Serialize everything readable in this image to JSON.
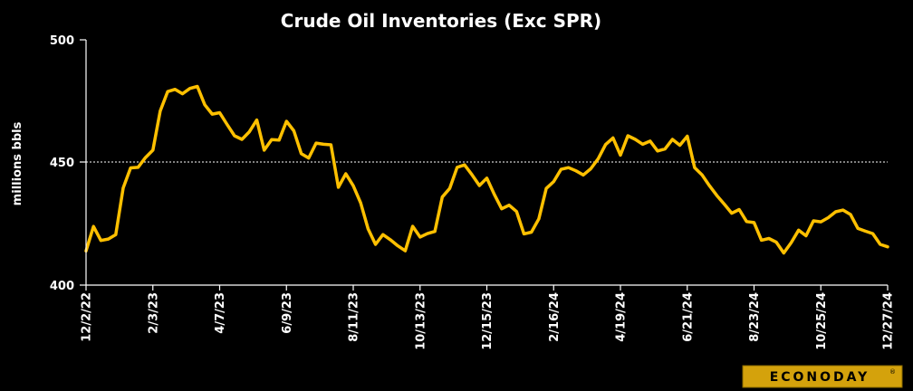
{
  "chart_data": {
    "type": "line",
    "title": "Crude Oil Inventories (Exc SPR)",
    "ylabel": "millions bbls",
    "ylim": [
      400,
      500
    ],
    "yticks": [
      "400",
      "450",
      "500"
    ],
    "gridline": 450,
    "x_tick_labels": [
      "12/2/22",
      "2/3/23",
      "4/7/23",
      "6/9/23",
      "8/11/23",
      "10/13/23",
      "12/15/23",
      "2/16/24",
      "4/19/24",
      "6/21/24",
      "8/23/24",
      "10/25/24",
      "12/27/24"
    ],
    "series": [
      {
        "color": "#ffc000",
        "values": [
          413.9,
          423.9,
          418.2,
          418.8,
          420.6,
          439.6,
          447.8,
          448.0,
          452.0,
          455.0,
          471.0,
          478.9,
          479.8,
          478.0,
          480.2,
          481.0,
          473.5,
          469.7,
          470.3,
          465.5,
          460.9,
          459.4,
          462.5,
          467.3,
          455.0,
          459.3,
          459.1,
          466.8,
          462.9,
          453.6,
          451.8,
          457.9,
          457.4,
          457.2,
          439.9,
          445.4,
          440.5,
          433.5,
          422.9,
          416.6,
          420.6,
          418.5,
          416.0,
          414.0,
          424.0,
          419.6,
          421.0,
          421.9,
          435.9,
          439.4,
          448.0,
          449.0,
          445.0,
          440.6,
          443.6,
          437.0,
          431.1,
          432.6,
          430.0,
          420.9,
          421.6,
          427.0,
          439.4,
          442.2,
          447.2,
          447.9,
          446.6,
          444.9,
          447.4,
          451.5,
          457.3,
          460.0,
          453.0,
          460.9,
          459.4,
          457.4,
          458.7,
          454.7,
          455.5,
          459.4,
          457.0,
          460.7,
          447.9,
          444.9,
          440.5,
          436.5,
          433.0,
          429.3,
          430.8,
          425.9,
          425.5,
          418.3,
          419.0,
          417.5,
          413.1,
          417.3,
          422.4,
          420.1,
          426.2,
          425.8,
          427.5,
          429.9,
          430.6,
          428.8,
          423.1,
          422.0,
          421.0,
          416.6,
          415.6
        ]
      }
    ]
  },
  "logo": {
    "text": "ECONODAY",
    "reg": "®"
  }
}
